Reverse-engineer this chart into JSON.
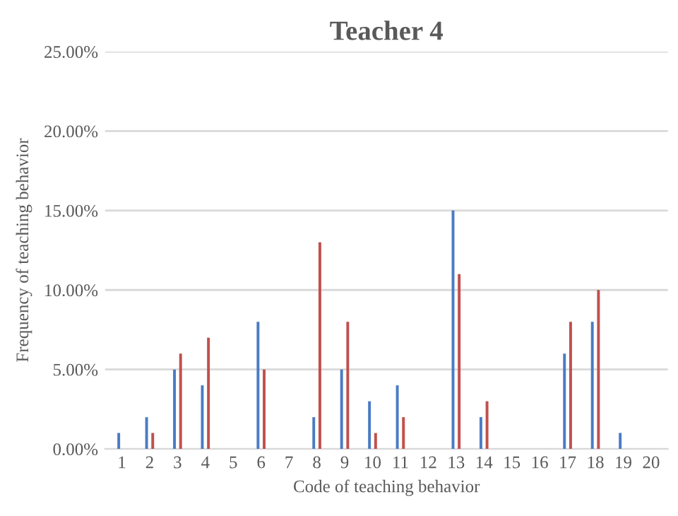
{
  "chart_data": {
    "type": "bar",
    "title": "Teacher 4",
    "xlabel": "Code of teaching behavior",
    "ylabel": "Frequency of teaching behavior",
    "categories": [
      "1",
      "2",
      "3",
      "4",
      "5",
      "6",
      "7",
      "8",
      "9",
      "10",
      "11",
      "12",
      "13",
      "14",
      "15",
      "16",
      "17",
      "18",
      "19",
      "20"
    ],
    "series": [
      {
        "color": "#4a7cc4",
        "values": [
          1,
          2,
          5,
          4,
          0,
          8,
          0,
          2,
          5,
          3,
          4,
          0,
          15,
          2,
          0,
          0,
          6,
          8,
          1,
          0
        ]
      },
      {
        "color": "#c0504d",
        "values": [
          0,
          1,
          6,
          7,
          0,
          5,
          0,
          13,
          8,
          1,
          2,
          0,
          11,
          3,
          0,
          0,
          8,
          10,
          0,
          0
        ]
      }
    ],
    "ylim": [
      0,
      25
    ],
    "yticks": [
      {
        "value": 0,
        "label": "0.00%"
      },
      {
        "value": 5,
        "label": "5.00%"
      },
      {
        "value": 10,
        "label": "10.00%"
      },
      {
        "value": 15,
        "label": "15.00%"
      },
      {
        "value": 20,
        "label": "20.00%"
      },
      {
        "value": 25,
        "label": "25.00%"
      }
    ],
    "grid": "y"
  }
}
